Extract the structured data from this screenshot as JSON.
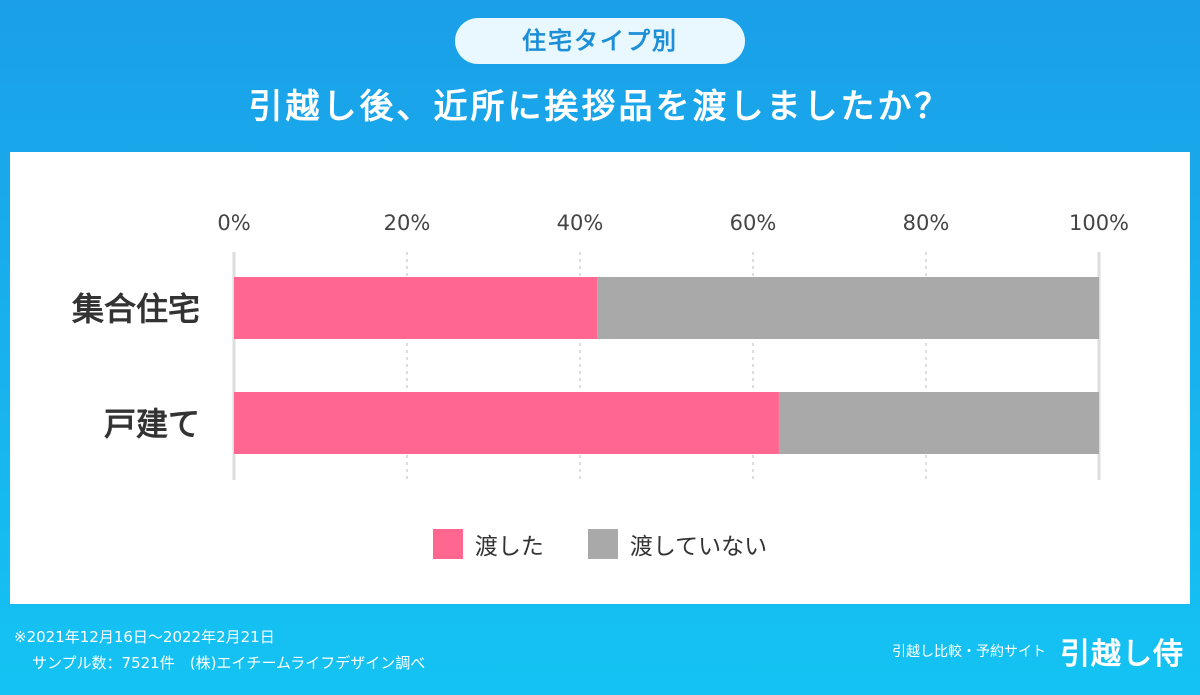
{
  "header": {
    "tag": "住宅タイプ別",
    "title": "引越し後、近所に挨拶品を渡しましたか？"
  },
  "footnote": {
    "period": "※2021年12月16日〜2022年2月21日",
    "sample": "サンプル数：7521件　(株)エイチームライフデザイン調べ"
  },
  "brand": {
    "tagline": "引越し比較・予約サイト",
    "logo": "引越し侍"
  },
  "colors": {
    "gave": "#ff6690",
    "did_not": "#a9a9a9",
    "header_top": "#1a9fe8"
  },
  "chart_data": {
    "type": "bar",
    "orientation": "horizontal",
    "stacked": true,
    "percent": true,
    "categories": [
      "集合住宅",
      "戸建て"
    ],
    "series": [
      {
        "name": "渡した",
        "values": [
          42,
          63
        ]
      },
      {
        "name": "渡していない",
        "values": [
          58,
          37
        ]
      }
    ],
    "xlim": [
      0,
      100
    ],
    "xticks": [
      "0%",
      "20%",
      "40%",
      "60%",
      "80%",
      "100%"
    ],
    "grid": true,
    "legend": "bottom"
  }
}
